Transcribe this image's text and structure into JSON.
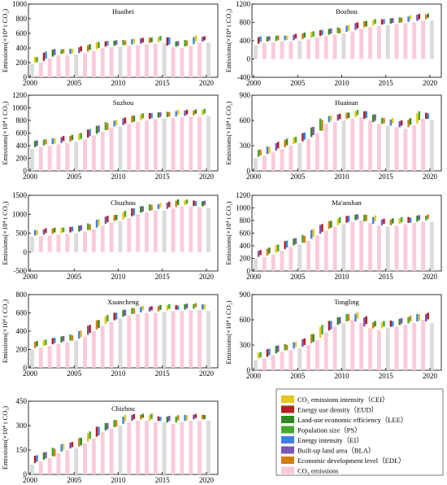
{
  "legend": {
    "items": [
      {
        "label": "CO₂ emissions intensity（CEI）",
        "color": "#e6c619"
      },
      {
        "label": "Energy use density（EUD）",
        "color": "#b41f1f"
      },
      {
        "label": "Land-use economic efficiency（LEE）",
        "color": "#2e8b1e"
      },
      {
        "label": "Population size（PS）",
        "color": "#47a82c"
      },
      {
        "label": "Energy intensity（EI）",
        "color": "#3c82e6"
      },
      {
        "label": "Built-up land area（BLA）",
        "color": "#7d55b4"
      },
      {
        "label": "Economic development level（EDL）",
        "color": "#d27e14"
      },
      {
        "label": "CO₂ emissions",
        "color": "#fac8d7"
      }
    ]
  },
  "chart_data": [
    {
      "type": "bar",
      "title": "Huaibei",
      "ylabel": "Emissions(×10⁴ t CO₂)",
      "ylim": [
        0,
        1000
      ],
      "yticks": [
        0,
        200,
        400,
        600,
        800,
        1000
      ],
      "xticks": [
        2000,
        2005,
        2010,
        2015,
        2020
      ],
      "years": [
        2000,
        2001,
        2002,
        2003,
        2004,
        2005,
        2006,
        2007,
        2008,
        2009,
        2010,
        2011,
        2012,
        2013,
        2014,
        2015,
        2016,
        2017,
        2018,
        2019,
        2020
      ],
      "co2": [
        180,
        200,
        260,
        300,
        300,
        310,
        330,
        360,
        400,
        410,
        420,
        430,
        440,
        450,
        460,
        470,
        410,
        400,
        430,
        470,
        470
      ]
    },
    {
      "type": "bar",
      "title": "Bozhou",
      "ylabel": "Emissions(×10⁴ t CO₂)",
      "ylim": [
        -400,
        1200
      ],
      "yticks": [
        -400,
        0,
        400,
        800,
        1200
      ],
      "xticks": [
        2000,
        2005,
        2010,
        2015,
        2020
      ],
      "years": [
        2000,
        2001,
        2002,
        2003,
        2004,
        2005,
        2006,
        2007,
        2008,
        2009,
        2010,
        2011,
        2012,
        2013,
        2014,
        2015,
        2016,
        2017,
        2018,
        2019,
        2020
      ],
      "co2": [
        300,
        350,
        360,
        380,
        380,
        400,
        430,
        470,
        500,
        530,
        560,
        600,
        660,
        700,
        720,
        740,
        760,
        780,
        800,
        840,
        840
      ]
    },
    {
      "type": "bar",
      "title": "Suzhou",
      "ylabel": "Emissions(×10⁴ t CO₂)",
      "ylim": [
        0,
        1200
      ],
      "yticks": [
        0,
        200,
        400,
        600,
        800,
        1000,
        1200
      ],
      "xticks": [
        2000,
        2005,
        2010,
        2015,
        2020
      ],
      "years": [
        2000,
        2001,
        2002,
        2003,
        2004,
        2005,
        2006,
        2007,
        2008,
        2009,
        2010,
        2011,
        2012,
        2013,
        2014,
        2015,
        2016,
        2017,
        2018,
        2019,
        2020
      ],
      "co2": [
        350,
        380,
        400,
        420,
        440,
        460,
        500,
        560,
        620,
        680,
        700,
        740,
        780,
        800,
        820,
        830,
        840,
        850,
        860,
        860,
        870
      ]
    },
    {
      "type": "bar",
      "title": "Huainan",
      "ylabel": "Emissions(×10⁴ t CO₂)",
      "ylim": [
        0,
        900
      ],
      "yticks": [
        0,
        300,
        600,
        900
      ],
      "xticks": [
        2000,
        2005,
        2010,
        2015,
        2020
      ],
      "years": [
        2000,
        2001,
        2002,
        2003,
        2004,
        2005,
        2006,
        2007,
        2008,
        2009,
        2010,
        2011,
        2012,
        2013,
        2014,
        2015,
        2016,
        2017,
        2018,
        2019,
        2020
      ],
      "co2": [
        150,
        180,
        220,
        260,
        300,
        330,
        380,
        450,
        560,
        580,
        600,
        620,
        640,
        600,
        560,
        540,
        520,
        500,
        540,
        620,
        600
      ]
    },
    {
      "type": "bar",
      "title": "Chuzhou",
      "ylabel": "Emissions(×10⁴ t CO₂)",
      "ylim": [
        -500,
        1500
      ],
      "yticks": [
        -500,
        0,
        500,
        1000,
        1500
      ],
      "xticks": [
        2000,
        2005,
        2010,
        2015,
        2020
      ],
      "years": [
        2000,
        2001,
        2002,
        2003,
        2004,
        2005,
        2006,
        2007,
        2008,
        2009,
        2010,
        2011,
        2012,
        2013,
        2014,
        2015,
        2016,
        2017,
        2018,
        2019,
        2020
      ],
      "co2": [
        400,
        420,
        440,
        460,
        480,
        500,
        540,
        600,
        700,
        780,
        820,
        900,
        1000,
        1050,
        1100,
        1100,
        1150,
        1200,
        1200,
        1180,
        1170
      ]
    },
    {
      "type": "bar",
      "title": "Ma'anshan",
      "ylabel": "Emissions(×10⁴ t CO₂)",
      "ylim": [
        0,
        1200
      ],
      "yticks": [
        0,
        200,
        400,
        600,
        800,
        1000,
        1200
      ],
      "xticks": [
        2000,
        2005,
        2010,
        2015,
        2020
      ],
      "years": [
        2000,
        2001,
        2002,
        2003,
        2004,
        2005,
        2006,
        2007,
        2008,
        2009,
        2010,
        2011,
        2012,
        2013,
        2014,
        2015,
        2016,
        2017,
        2018,
        2019,
        2020
      ],
      "co2": [
        200,
        220,
        260,
        320,
        380,
        420,
        480,
        560,
        640,
        700,
        740,
        780,
        800,
        760,
        720,
        700,
        720,
        740,
        760,
        780,
        780
      ]
    },
    {
      "type": "bar",
      "title": "Xuancheng",
      "ylabel": "Emissions(×10⁴ t CO₂)",
      "ylim": [
        0,
        800
      ],
      "yticks": [
        0,
        200,
        400,
        600,
        800
      ],
      "xticks": [
        2000,
        2005,
        2010,
        2015,
        2020
      ],
      "years": [
        2000,
        2001,
        2002,
        2003,
        2004,
        2005,
        2006,
        2007,
        2008,
        2009,
        2010,
        2011,
        2012,
        2013,
        2014,
        2015,
        2016,
        2017,
        2018,
        2019,
        2020
      ],
      "co2": [
        200,
        220,
        240,
        260,
        280,
        300,
        340,
        400,
        460,
        500,
        540,
        570,
        590,
        600,
        600,
        610,
        620,
        620,
        630,
        630,
        620
      ]
    },
    {
      "type": "bar",
      "title": "Tongling",
      "ylabel": "Emissions(×10⁴ t CO₂)",
      "ylim": [
        0,
        900
      ],
      "yticks": [
        0,
        300,
        600,
        900
      ],
      "xticks": [
        2000,
        2005,
        2010,
        2015,
        2020
      ],
      "years": [
        2000,
        2001,
        2002,
        2003,
        2004,
        2005,
        2006,
        2007,
        2008,
        2009,
        2010,
        2011,
        2012,
        2013,
        2014,
        2015,
        2016,
        2017,
        2018,
        2019,
        2020
      ],
      "co2": [
        120,
        140,
        180,
        220,
        240,
        260,
        300,
        360,
        450,
        520,
        560,
        600,
        560,
        500,
        480,
        500,
        520,
        540,
        560,
        600,
        560
      ]
    },
    {
      "type": "bar",
      "title": "Chizhou",
      "ylabel": "Emissions(×10⁴ t CO₂)",
      "ylim": [
        0,
        450
      ],
      "yticks": [
        0,
        150,
        300,
        450
      ],
      "xticks": [
        2000,
        2005,
        2010,
        2015,
        2020
      ],
      "years": [
        2000,
        2001,
        2002,
        2003,
        2004,
        2005,
        2006,
        2007,
        2008,
        2009,
        2010,
        2011,
        2012,
        2013,
        2014,
        2015,
        2016,
        2017,
        2018,
        2019,
        2020
      ],
      "co2": [
        60,
        80,
        100,
        130,
        150,
        160,
        190,
        220,
        260,
        280,
        300,
        320,
        330,
        330,
        320,
        320,
        310,
        320,
        330,
        330,
        330
      ]
    }
  ]
}
